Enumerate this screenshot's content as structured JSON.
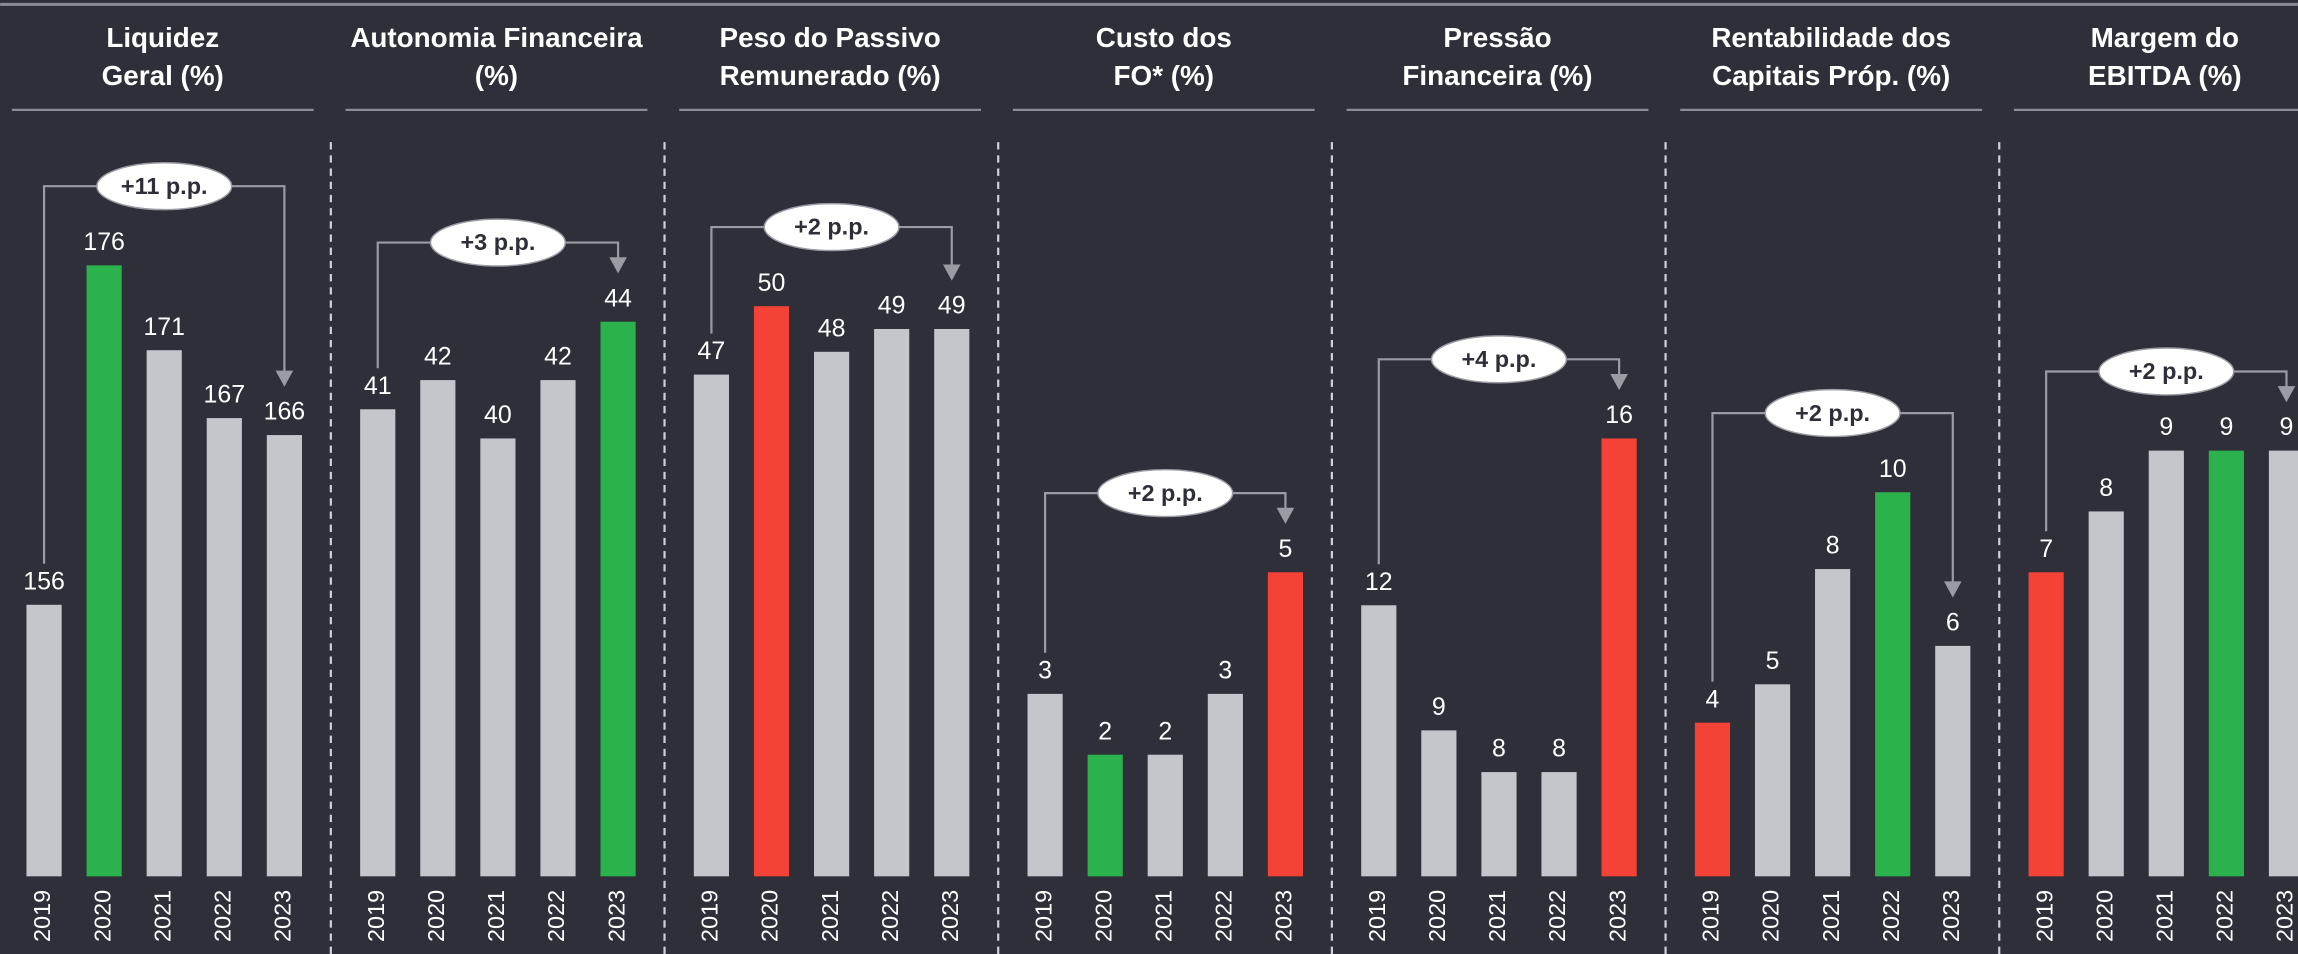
{
  "chart_data": [
    {
      "type": "bar",
      "title": [
        "Liquidez",
        "Geral (%)"
      ],
      "categories": [
        "2019",
        "2020",
        "2021",
        "2022",
        "2023"
      ],
      "values": [
        156,
        176,
        171,
        167,
        166
      ],
      "colors": [
        "#c5c5cc",
        "#2bb24c",
        "#c5c5cc",
        "#c5c5cc",
        "#c5c5cc"
      ],
      "ylim": [
        140,
        183
      ],
      "annotation": "+11 p.p."
    },
    {
      "type": "bar",
      "title": [
        "Autonomia Financeira",
        "(%)"
      ],
      "categories": [
        "2019",
        "2020",
        "2021",
        "2022",
        "2023"
      ],
      "values": [
        41,
        42,
        40,
        42,
        44
      ],
      "colors": [
        "#c5c5cc",
        "#c5c5cc",
        "#c5c5cc",
        "#c5c5cc",
        "#2bb24c"
      ],
      "ylim": [
        25,
        50
      ],
      "annotation": "+3 p.p."
    },
    {
      "type": "bar",
      "title": [
        "Peso do Passivo",
        "Remunerado (%)"
      ],
      "categories": [
        "2019",
        "2020",
        "2021",
        "2022",
        "2023"
      ],
      "values": [
        47,
        50,
        48,
        49,
        49
      ],
      "colors": [
        "#c5c5cc",
        "#f44236",
        "#c5c5cc",
        "#c5c5cc",
        "#c5c5cc"
      ],
      "ylim": [
        25,
        57
      ],
      "annotation": "+2 p.p."
    },
    {
      "type": "bar",
      "title": [
        "Custo dos",
        "FO* (%)"
      ],
      "categories": [
        "2019",
        "2020",
        "2021",
        "2022",
        "2023"
      ],
      "values": [
        3,
        2,
        2,
        3,
        5
      ],
      "colors": [
        "#c5c5cc",
        "#2bb24c",
        "#c5c5cc",
        "#c5c5cc",
        "#f44236"
      ],
      "ylim": [
        0,
        12
      ],
      "annotation": "+2 p.p."
    },
    {
      "type": "bar",
      "title": [
        "Pressão",
        "Financeira (%)"
      ],
      "categories": [
        "2019",
        "2020",
        "2021",
        "2022",
        "2023"
      ],
      "values": [
        12,
        9,
        8,
        8,
        16
      ],
      "colors": [
        "#c5c5cc",
        "#c5c5cc",
        "#c5c5cc",
        "#c5c5cc",
        "#f44236"
      ],
      "ylim": [
        5.5,
        23
      ],
      "annotation": "+4 p.p."
    },
    {
      "type": "bar",
      "title": [
        "Rentabilidade dos",
        "Capitais Próp. (%)"
      ],
      "categories": [
        "2019",
        "2020",
        "2021",
        "2022",
        "2023"
      ],
      "values": [
        4,
        5,
        8,
        10,
        6
      ],
      "colors": [
        "#f44236",
        "#c5c5cc",
        "#c5c5cc",
        "#2bb24c",
        "#c5c5cc"
      ],
      "ylim": [
        0,
        19
      ],
      "annotation": "+2 p.p."
    },
    {
      "type": "bar",
      "title": [
        "Margem do",
        "EBITDA (%)"
      ],
      "categories": [
        "2019",
        "2020",
        "2021",
        "2022",
        "2023"
      ],
      "values": [
        7,
        8,
        9,
        9,
        9
      ],
      "colors": [
        "#f44236",
        "#c5c5cc",
        "#c5c5cc",
        "#2bb24c",
        "#c5c5cc"
      ],
      "ylim": [
        2,
        14
      ],
      "annotation": "+2 p.p."
    }
  ]
}
